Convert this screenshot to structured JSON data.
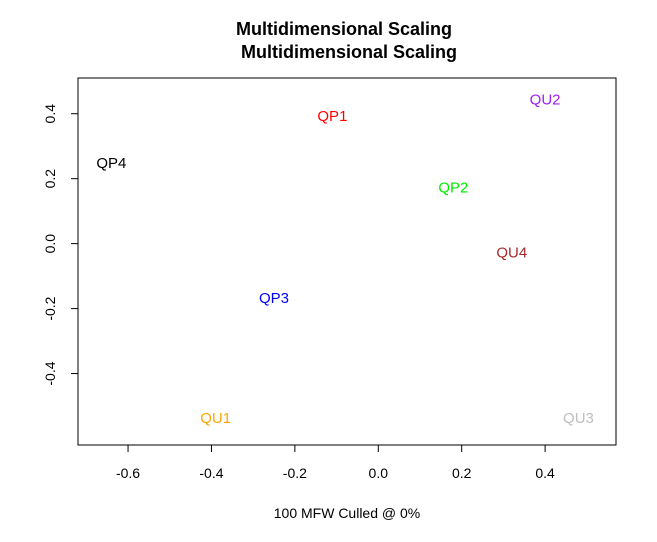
{
  "chart_data": {
    "type": "scatter",
    "title": "Multidimensional Scaling",
    "subtitle": "Multidimensional Scaling",
    "xlabel": "100 MFW  Culled @ 0%",
    "ylabel": "",
    "xlim": [
      -0.72,
      0.57
    ],
    "ylim": [
      -0.62,
      0.51
    ],
    "x_ticks": [
      -0.6,
      -0.4,
      -0.2,
      0.0,
      0.2,
      0.4
    ],
    "x_tick_labels": [
      "-0.6",
      "-0.4",
      "-0.2",
      "0.0",
      "0.2",
      "0.4"
    ],
    "y_ticks": [
      -0.4,
      -0.2,
      0.0,
      0.2,
      0.4
    ],
    "y_tick_labels": [
      "-0.4",
      "-0.2",
      "0.0",
      "0.2",
      "0.4"
    ],
    "grid": false,
    "legend": "none",
    "points": [
      {
        "label": "QP1",
        "x": -0.11,
        "y": 0.39,
        "color": "#ff0000"
      },
      {
        "label": "QP2",
        "x": 0.18,
        "y": 0.17,
        "color": "#00ee00"
      },
      {
        "label": "QP3",
        "x": -0.25,
        "y": -0.17,
        "color": "#0000ff"
      },
      {
        "label": "QP4",
        "x": -0.64,
        "y": 0.245,
        "color": "#000000"
      },
      {
        "label": "QU1",
        "x": -0.39,
        "y": -0.54,
        "color": "#ffa500"
      },
      {
        "label": "QU2",
        "x": 0.4,
        "y": 0.44,
        "color": "#a020f0"
      },
      {
        "label": "QU3",
        "x": 0.48,
        "y": -0.54,
        "color": "#bebebe"
      },
      {
        "label": "QU4",
        "x": 0.32,
        "y": -0.03,
        "color": "#a52a2a"
      }
    ]
  }
}
